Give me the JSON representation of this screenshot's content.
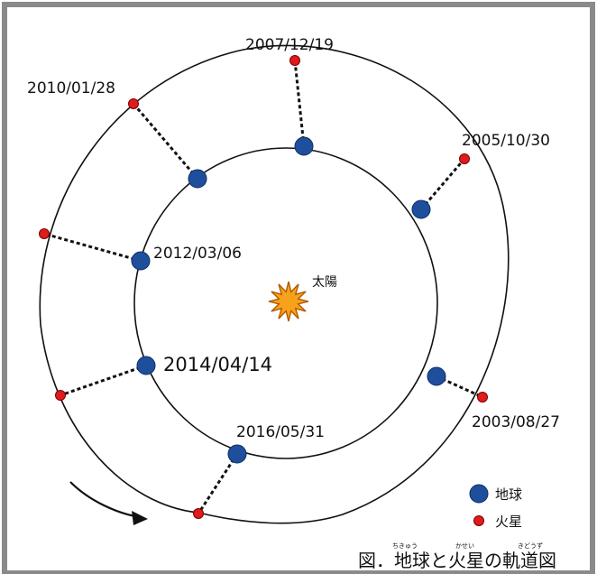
{
  "diagram": {
    "sun_label": "太陽",
    "opposition_dates": [
      {
        "date": "2003/08/27"
      },
      {
        "date": "2005/10/30"
      },
      {
        "date": "2007/12/19"
      },
      {
        "date": "2010/01/28"
      },
      {
        "date": "2012/03/06"
      },
      {
        "date": "2014/04/14"
      },
      {
        "date": "2016/05/31"
      }
    ],
    "legend": [
      {
        "label": "地球",
        "color": "#1f4e9c"
      },
      {
        "label": "火星",
        "color": "#e01b1b"
      }
    ],
    "caption": {
      "main": "図．地球と火星の軌道図",
      "ruby": [
        "ちきゅう",
        "かせい",
        "きどうず"
      ]
    },
    "colors": {
      "border": "#8a8a8a",
      "earth": "#1f4e9c",
      "mars": "#e01b1b",
      "sun_fill": "#f7a21b",
      "sun_stroke": "#b05a00",
      "line": "#111111"
    }
  }
}
